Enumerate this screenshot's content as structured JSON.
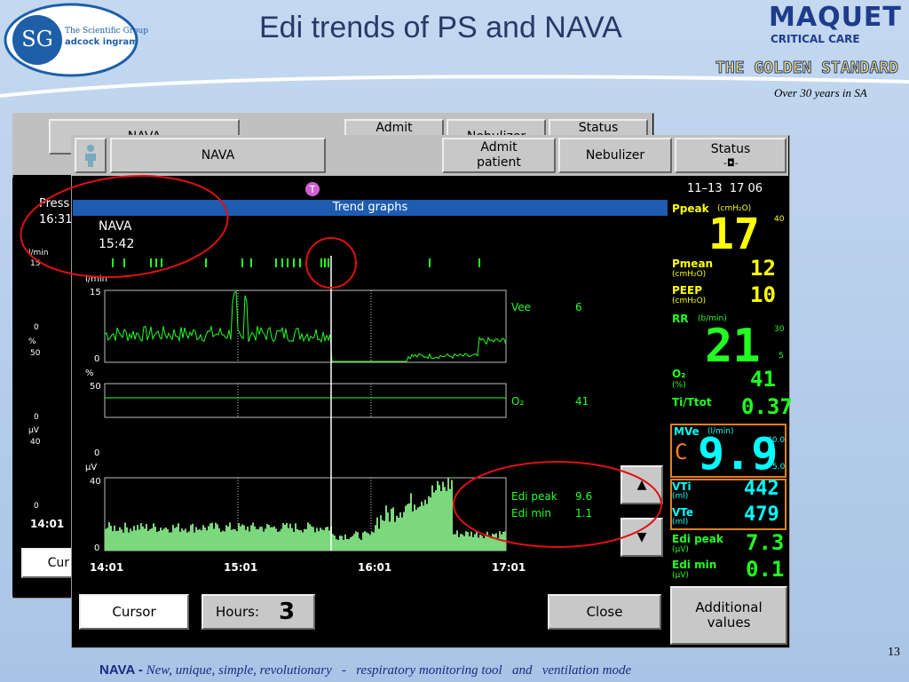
{
  "slide": {
    "title": "Edi trends of PS and NAVA",
    "page_number": "13",
    "footer": {
      "lead": "NAVA -",
      "text": "New, unique, simple, revolutionary   -   respiratory monitoring tool   and   ventilation mode"
    }
  },
  "logos": {
    "scientific_group": "The Scientific Group",
    "adcock": "adcock ingram",
    "maquet": "MAQUET",
    "critical_care": "CRITICAL CARE",
    "golden": "THE GOLDEN STANDARD",
    "years": "Over 30 years in SA"
  },
  "back_window": {
    "mode": "NAVA",
    "buttons": [
      "Admit",
      "Nebulizer",
      "Status"
    ],
    "label": "Press",
    "time": "16:31",
    "axes": [
      {
        "unit": "l/min",
        "top": "15",
        "bottom": "0"
      },
      {
        "unit": "%",
        "top": "50",
        "bottom": "0"
      },
      {
        "unit": "µV",
        "top": "40",
        "bottom": "0"
      }
    ],
    "start_time": "14:01",
    "cursor_button": "Cur"
  },
  "front_window": {
    "mode": "NAVA",
    "buttons": [
      "Admit patient",
      "Nebulizer",
      "Status"
    ],
    "datetime": "11–13  17 06"
  },
  "trend": {
    "title": "Trend graphs",
    "mode": "NAVA",
    "time": "15:42",
    "axes": [
      {
        "unit": "l/min",
        "top": "15",
        "bottom": "0"
      },
      {
        "unit": "%",
        "top": "50",
        "bottom": "0"
      },
      {
        "unit": "µV",
        "top": "40",
        "bottom": "0"
      }
    ],
    "times": [
      "14:01",
      "15:01",
      "16:01",
      "17:01"
    ],
    "readouts": [
      {
        "label": "Vee",
        "value": "6"
      },
      {
        "label": "O₂",
        "value": "41"
      },
      {
        "label": "Edi peak",
        "value": "9.6"
      },
      {
        "label": "Edi min",
        "value": "1.1"
      }
    ],
    "cursor": "Cursor",
    "hours_label": "Hours:",
    "hours": "3",
    "close": "Close"
  },
  "monitor": {
    "ppeak": {
      "label": "Ppeak",
      "unit": "(cmH₂O)",
      "value": "17",
      "upper": "40"
    },
    "pmean": {
      "label": "Pmean",
      "unit": "(cmH₂O)",
      "value": "12"
    },
    "peep": {
      "label": "PEEP",
      "unit": "(cmH₂O)",
      "value": "10"
    },
    "rr": {
      "label": "RR",
      "unit": "(b/min)",
      "value": "21",
      "upper": "30",
      "lower": "5"
    },
    "o2": {
      "label": "O₂",
      "unit": "(%)",
      "value": "41"
    },
    "titot": {
      "label": "Ti/Ttot",
      "value": "0.37"
    },
    "mve": {
      "label": "MVe",
      "unit": "(l/min)",
      "flag": "C",
      "value": "9.9",
      "upper": "40.0",
      "lower": "5.0"
    },
    "vti": {
      "label": "VTi",
      "unit": "(ml)",
      "value": "442"
    },
    "vte": {
      "label": "VTe",
      "unit": "(ml)",
      "value": "479"
    },
    "edi_peak": {
      "label": "Edi peak",
      "unit": "(µV)",
      "value": "7.3"
    },
    "edi_min": {
      "label": "Edi min",
      "unit": "(µV)",
      "value": "0.1"
    },
    "additional": "Additional values"
  }
}
